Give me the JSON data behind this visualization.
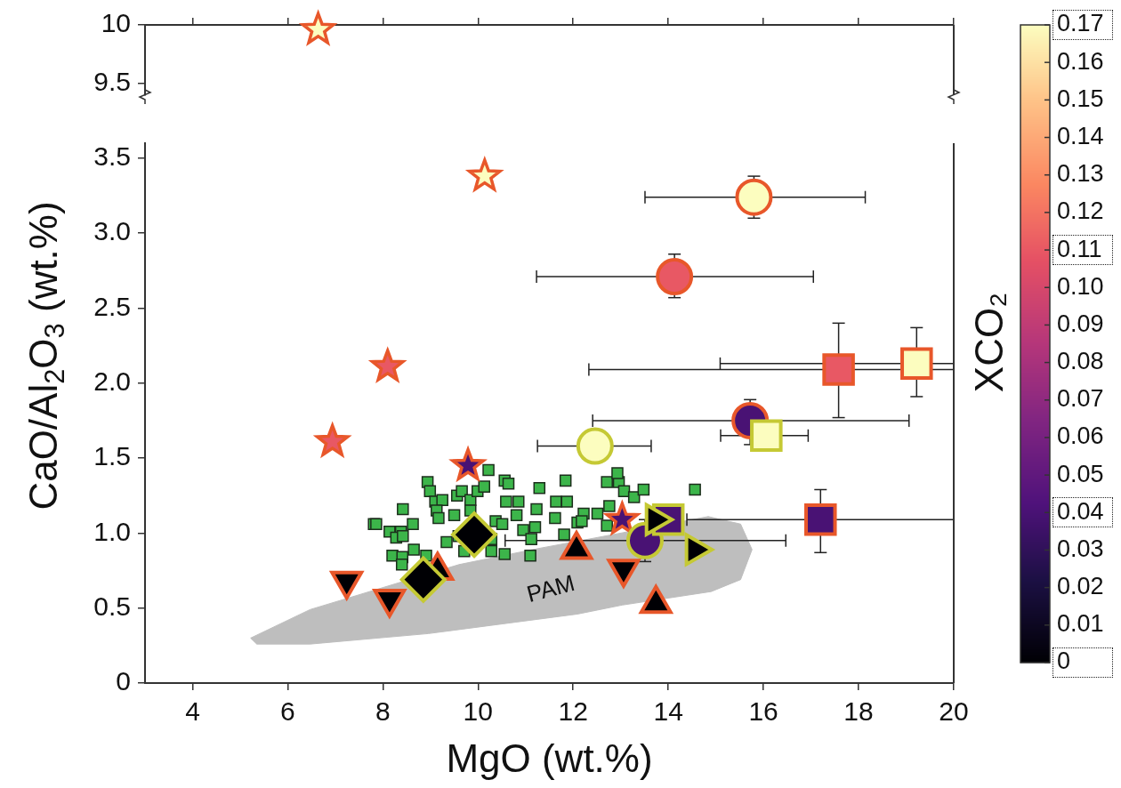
{
  "chart_data": [
    {
      "type": "scatter",
      "xlim": [
        3,
        20
      ],
      "xticks": [
        4,
        6,
        8,
        10,
        12,
        14,
        16,
        18,
        20
      ],
      "ylim": [
        9.4,
        10
      ],
      "yticks": [
        9.5,
        10
      ],
      "tick_labels": "y",
      "series": [
        {
          "type": "scatter",
          "marker": "star",
          "color": "#e8572a",
          "x": [
            6.64
          ],
          "values": [
            9.96
          ],
          "colors": [
            "#fcfdbf"
          ]
        }
      ]
    },
    {
      "type": "scatter",
      "xlabel": "MgO (wt.%)",
      "ylabel": "CaO/Al$_{2}$O$_{3}$ (wt.%)",
      "xlim": [
        3,
        20
      ],
      "xticks": [
        4,
        6,
        8,
        10,
        12,
        14,
        16,
        18,
        20
      ],
      "ylim": [
        0,
        3.6
      ],
      "yticks": [
        0,
        0.5,
        {
          "value": 1,
          "label": "1.0"
        },
        1.5,
        {
          "value": 2,
          "label": "2.0"
        },
        2.5,
        {
          "value": 3,
          "label": "3.0"
        },
        3.5
      ],
      "clabel": "XCO₂",
      "clim": [
        0,
        0.17
      ],
      "cticks": [
        0,
        0.01,
        0.02,
        0.03,
        0.04,
        0.05,
        0.06,
        0.07,
        0.08,
        0.09,
        {
          "value": 0.1,
          "label": "0.10"
        },
        0.11,
        0.12,
        0.13,
        0.14,
        0.15,
        0.16,
        0.17
      ],
      "series": [
        {
          "type": "area",
          "name": "PAM",
          "color": "#bebebe",
          "x": [
            5.22,
            6.47,
            9.6,
            11.15,
            12.5,
            14.84,
            15.52,
            15.76,
            15.52,
            14.9,
            13.03,
            12.09,
            8.96,
            6.47,
            5.35,
            5.22
          ],
          "values": [
            0.3,
            0.49,
            0.79,
            0.89,
            0.97,
            1.11,
            1.06,
            0.89,
            0.69,
            0.61,
            0.52,
            0.46,
            0.33,
            0.26,
            0.26,
            0.3
          ]
        },
        {
          "type": "scatter",
          "marker": "square",
          "color": "#3cb54a",
          "x": [
            7.81,
            7.86,
            8.14,
            8.42,
            8.38,
            8.28,
            8.42,
            8.63,
            8.2,
            8.41,
            8.4,
            8.65,
            8.91,
            8.94,
            8.99,
            9.1,
            9.25,
            9.13,
            9.17,
            9.5,
            9.56,
            9.66,
            9.84,
            9.84,
            9.99,
            10.13,
            10.22,
            9.59,
            9.34,
            9.71,
            10.28,
            10.37,
            10.51,
            10.28,
            10.56,
            10.56,
            10.64,
            10.59,
            10.85,
            10.81,
            10.95,
            11.12,
            11.1,
            11.23,
            11.29,
            11.2,
            11.64,
            11.62,
            11.81,
            11.84,
            11.87,
            12.09,
            12.71,
            12.96,
            12.93,
            13.07,
            13.28,
            13.48,
            12.76,
            12.22,
            12.51,
            12.18,
            12.71,
            14.56
          ],
          "values": [
            1.06,
            1.06,
            1.01,
            1.16,
            1.01,
            0.97,
            0.98,
            1.06,
            0.85,
            0.84,
            0.79,
            0.89,
            0.85,
            1.34,
            1.28,
            1.21,
            1.22,
            1.15,
            1.1,
            1.12,
            1.25,
            1.28,
            1.22,
            1.15,
            1.28,
            1.31,
            1.42,
            0.98,
            0.94,
            0.88,
            0.88,
            1.08,
            1.06,
            0.96,
            0.86,
            1.35,
            1.33,
            1.21,
            1.21,
            1.12,
            1.02,
            0.96,
            0.85,
            1.16,
            1.3,
            1.04,
            1.21,
            1.1,
            0.99,
            1.35,
            1.21,
            1.07,
            1.34,
            1.34,
            1.4,
            1.28,
            1.24,
            1.29,
            1.18,
            1.13,
            1.13,
            1.08,
            1.05,
            1.29
          ]
        },
        {
          "type": "scatter",
          "marker": "star",
          "color": "#e8572a",
          "x": [
            10.14,
            8.1,
            6.94,
            9.79,
            13.03
          ],
          "values": [
            3.38,
            2.11,
            1.61,
            1.45,
            1.09
          ],
          "cvalues": [
            0.17,
            0.11,
            0.11,
            0.04,
            0.04
          ]
        },
        {
          "type": "scatter",
          "marker": "circle",
          "color": "#e8572a",
          "x": [
            15.8,
            14.13,
            15.72
          ],
          "values": [
            3.24,
            2.71,
            1.75
          ],
          "cvalues": [
            0.17,
            0.11,
            0.04
          ],
          "xerrors": [
            [
              13.51,
              18.14
            ],
            [
              11.23,
              17.05
            ],
            [
              12.41,
              19.06
            ]
          ],
          "errors": [
            [
              3.1,
              3.38
            ],
            [
              2.57,
              2.86
            ],
            [
              1.59,
              1.89
            ]
          ]
        },
        {
          "type": "scatter",
          "marker": "square",
          "color": "#e8572a",
          "x": [
            17.58,
            19.22,
            17.2
          ],
          "values": [
            2.09,
            2.13,
            1.09
          ],
          "cvalues": [
            0.11,
            0.17,
            0.04
          ],
          "xerrors": [
            [
              12.33,
              20
            ],
            [
              15.09,
              20
            ],
            [
              14.39,
              20
            ]
          ],
          "errors": [
            [
              1.77,
              2.4
            ],
            [
              1.91,
              2.37
            ],
            [
              0.87,
              1.29
            ]
          ]
        },
        {
          "type": "scatter",
          "marker": "circle",
          "color": "#c5c934",
          "x": [
            12.46,
            13.51
          ],
          "values": [
            1.58,
            0.95
          ],
          "cvalues": [
            0.17,
            0.04
          ],
          "xerrors": [
            [
              11.25,
              13.64
            ],
            [
              10.57,
              16.47
            ]
          ],
          "errors": [
            null,
            [
              0.81,
              1.09
            ]
          ]
        },
        {
          "type": "scatter",
          "marker": "square",
          "color": "#c5c934",
          "x": [
            16.06,
            14.0
          ],
          "values": [
            1.65,
            1.09
          ],
          "cvalues": [
            0.17,
            0.04
          ],
          "xerrors": [
            [
              15.1,
              16.94
            ],
            null
          ]
        },
        {
          "type": "scatter",
          "marker": "triangle",
          "color": "#e8572a",
          "x": [
            9.15,
            12.07,
            13.74
          ],
          "values": [
            0.75,
            0.89,
            0.53
          ],
          "cvalues": [
            0,
            0,
            0
          ]
        },
        {
          "type": "scatter",
          "marker": "triangle-down",
          "color": "#e8572a",
          "x": [
            7.24,
            8.14,
            13.06
          ],
          "values": [
            0.68,
            0.56,
            0.76
          ],
          "cvalues": [
            0,
            0,
            0
          ]
        },
        {
          "type": "scatter",
          "marker": "diamond",
          "color": "#c5c934",
          "x": [
            9.92,
            8.85
          ],
          "values": [
            0.99,
            0.69
          ],
          "cvalues": [
            0,
            0
          ]
        },
        {
          "type": "scatter",
          "marker": "triangle-right",
          "color": "#c5c934",
          "x": [
            13.72,
            14.56
          ],
          "values": [
            1.09,
            0.89
          ],
          "cvalues": [
            0,
            0
          ]
        }
      ]
    }
  ]
}
